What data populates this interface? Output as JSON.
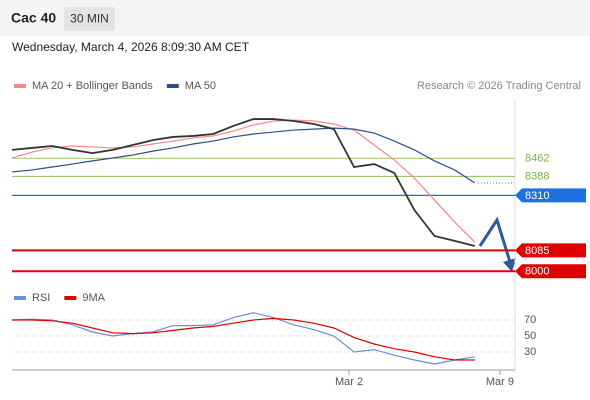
{
  "header": {
    "title": "Cac 40",
    "interval": "30 MIN",
    "date": "Wednesday, March 4, 2026 8:09:30 AM CET"
  },
  "chart_data": [
    {
      "type": "line",
      "source": "Research © 2026 Trading Central",
      "x": [
        0,
        4,
        8,
        12,
        16,
        20,
        24,
        28,
        32,
        36,
        40,
        44,
        48,
        52,
        56,
        60,
        64,
        68,
        72,
        76,
        80,
        84,
        88,
        92
      ],
      "values": [
        8496,
        8504,
        8512,
        8496,
        8483,
        8496,
        8516,
        8536,
        8549,
        8553,
        8561,
        8594,
        8622,
        8622,
        8614,
        8602,
        8581,
        8426,
        8438,
        8402,
        8250,
        8144,
        8124,
        8103
      ],
      "color": "#333333",
      "series": [
        {
          "name": "MA 20 + Bollinger Bands",
          "color": "#f08a8a",
          "values": [
            8463,
            8487,
            8504,
            8512,
            8508,
            8504,
            8508,
            8520,
            8532,
            8545,
            8553,
            8573,
            8598,
            8614,
            8618,
            8614,
            8602,
            8577,
            8516,
            8455,
            8381,
            8291,
            8201,
            8119
          ]
        },
        {
          "name": "MA 50",
          "color": "#2d4e85",
          "values": [
            8406,
            8414,
            8426,
            8438,
            8451,
            8463,
            8475,
            8491,
            8504,
            8520,
            8532,
            8549,
            8561,
            8569,
            8577,
            8581,
            8585,
            8581,
            8565,
            8532,
            8496,
            8451,
            8414,
            8361
          ]
        }
      ],
      "levels": [
        {
          "value": 8462,
          "color": "#7cb342"
        },
        {
          "value": 8388,
          "color": "#7cb342"
        },
        {
          "value": 8310,
          "color": "#1e6fe0"
        },
        {
          "value": 8085,
          "color": "#e00000"
        },
        {
          "value": 8000,
          "color": "#e00000"
        }
      ],
      "xlim": [
        0,
        100
      ],
      "ylim": [
        7960,
        8700
      ],
      "xticks": [
        {
          "value": 67,
          "label": "Mar 2"
        },
        {
          "value": 97,
          "label": "Mar 9"
        }
      ]
    },
    {
      "type": "line",
      "x": [
        0,
        4,
        8,
        12,
        16,
        20,
        24,
        28,
        32,
        36,
        40,
        44,
        48,
        52,
        56,
        60,
        64,
        68,
        72,
        76,
        80,
        84,
        88,
        92
      ],
      "series": [
        {
          "name": "RSI",
          "color": "#6b8fd6",
          "values": [
            70,
            71,
            70,
            64,
            55,
            50,
            53,
            55,
            63,
            63,
            64,
            73,
            79,
            73,
            64,
            58,
            50,
            30,
            33,
            26,
            20,
            15,
            20,
            24
          ]
        },
        {
          "name": "9MA",
          "color": "#e00000",
          "values": [
            70,
            70,
            69,
            66,
            60,
            54,
            53,
            54,
            57,
            60,
            62,
            66,
            70,
            72,
            70,
            66,
            60,
            48,
            40,
            34,
            30,
            24,
            20,
            20
          ]
        }
      ],
      "xlim": [
        0,
        100
      ],
      "ylim": [
        10,
        90
      ],
      "yticks": [
        30,
        50,
        70
      ]
    }
  ]
}
